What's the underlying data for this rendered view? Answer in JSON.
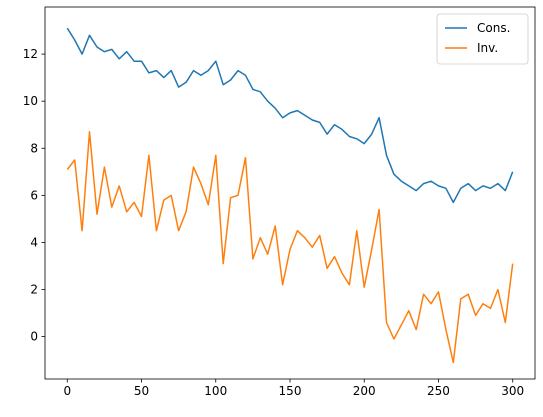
{
  "chart_data": {
    "type": "line",
    "title": "",
    "xlabel": "",
    "ylabel": "",
    "xlim": [
      -15,
      315
    ],
    "ylim": [
      -1.8,
      14.0
    ],
    "xticks": [
      0,
      50,
      100,
      150,
      200,
      250,
      300
    ],
    "yticks": [
      0,
      2,
      4,
      6,
      8,
      10,
      12
    ],
    "grid": false,
    "legend": {
      "position": "top-right",
      "entries": [
        "Cons.",
        "Inv."
      ]
    },
    "series": [
      {
        "name": "Cons.",
        "color": "#1f77b4",
        "x": [
          0,
          5,
          10,
          15,
          20,
          25,
          30,
          35,
          40,
          45,
          50,
          55,
          60,
          65,
          70,
          75,
          80,
          85,
          90,
          95,
          100,
          105,
          110,
          115,
          120,
          125,
          130,
          135,
          140,
          145,
          150,
          155,
          160,
          165,
          170,
          175,
          180,
          185,
          190,
          195,
          200,
          205,
          210,
          215,
          220,
          225,
          230,
          235,
          240,
          245,
          250,
          255,
          260,
          265,
          270,
          275,
          280,
          285,
          290,
          295,
          300
        ],
        "values": [
          13.1,
          12.6,
          12.0,
          12.8,
          12.3,
          12.1,
          12.2,
          11.8,
          12.1,
          11.7,
          11.7,
          11.2,
          11.3,
          11.0,
          11.3,
          10.6,
          10.8,
          11.3,
          11.1,
          11.3,
          11.7,
          10.7,
          10.9,
          11.3,
          11.1,
          10.5,
          10.4,
          10.0,
          9.7,
          9.3,
          9.5,
          9.6,
          9.4,
          9.2,
          9.1,
          8.6,
          9.0,
          8.8,
          8.5,
          8.4,
          8.2,
          8.6,
          9.3,
          7.7,
          6.9,
          6.6,
          6.4,
          6.2,
          6.5,
          6.6,
          6.4,
          6.3,
          5.7,
          6.3,
          6.5,
          6.2,
          6.4,
          6.3,
          6.5,
          6.2,
          7.0
        ]
      },
      {
        "name": "Inv.",
        "color": "#ff7f0e",
        "x": [
          0,
          5,
          10,
          15,
          20,
          25,
          30,
          35,
          40,
          45,
          50,
          55,
          60,
          65,
          70,
          75,
          80,
          85,
          90,
          95,
          100,
          105,
          110,
          115,
          120,
          125,
          130,
          135,
          140,
          145,
          150,
          155,
          160,
          165,
          170,
          175,
          180,
          185,
          190,
          195,
          200,
          205,
          210,
          215,
          220,
          225,
          230,
          235,
          240,
          245,
          250,
          255,
          260,
          265,
          270,
          275,
          280,
          285,
          290,
          295,
          300
        ],
        "values": [
          7.1,
          7.5,
          4.5,
          8.7,
          5.2,
          7.2,
          5.5,
          6.4,
          5.3,
          5.7,
          5.1,
          7.7,
          4.5,
          5.8,
          6.0,
          4.5,
          5.3,
          7.2,
          6.5,
          5.6,
          7.7,
          3.1,
          5.9,
          6.0,
          7.6,
          3.3,
          4.2,
          3.5,
          4.7,
          2.2,
          3.7,
          4.5,
          4.2,
          3.8,
          4.3,
          2.9,
          3.4,
          2.7,
          2.2,
          4.5,
          2.1,
          3.7,
          5.4,
          0.6,
          -0.1,
          0.5,
          1.1,
          0.3,
          1.8,
          1.4,
          1.9,
          0.3,
          -1.1,
          1.6,
          1.8,
          0.9,
          1.4,
          1.2,
          2.0,
          0.6,
          3.1
        ]
      }
    ]
  }
}
